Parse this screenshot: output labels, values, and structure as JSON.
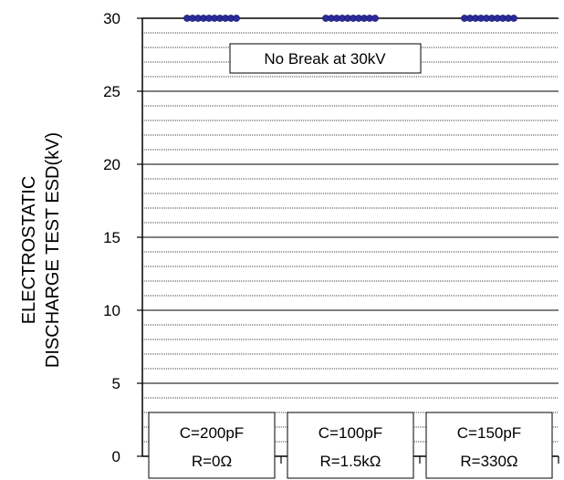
{
  "chart_data": {
    "type": "scatter",
    "ylabel_lines": [
      "ELECTROSTATIC",
      "DISCHARGE TEST ESD(kV)"
    ],
    "ylim": [
      0,
      30
    ],
    "y_ticks": [
      0,
      5,
      10,
      15,
      20,
      25,
      30
    ],
    "grid": true,
    "annotation": "No Break at 30kV",
    "categories": [
      {
        "line1": "C=200pF",
        "line2": "R=0Ω"
      },
      {
        "line1": "C=100pF",
        "line2": "R=1.5kΩ"
      },
      {
        "line1": "C=150pF",
        "line2": "R=330Ω"
      }
    ],
    "series": [
      {
        "values": [
          30,
          30,
          30
        ]
      }
    ],
    "colors": {
      "marker": "#2a2a9a",
      "axis": "#000000",
      "grid": "#000000"
    }
  }
}
